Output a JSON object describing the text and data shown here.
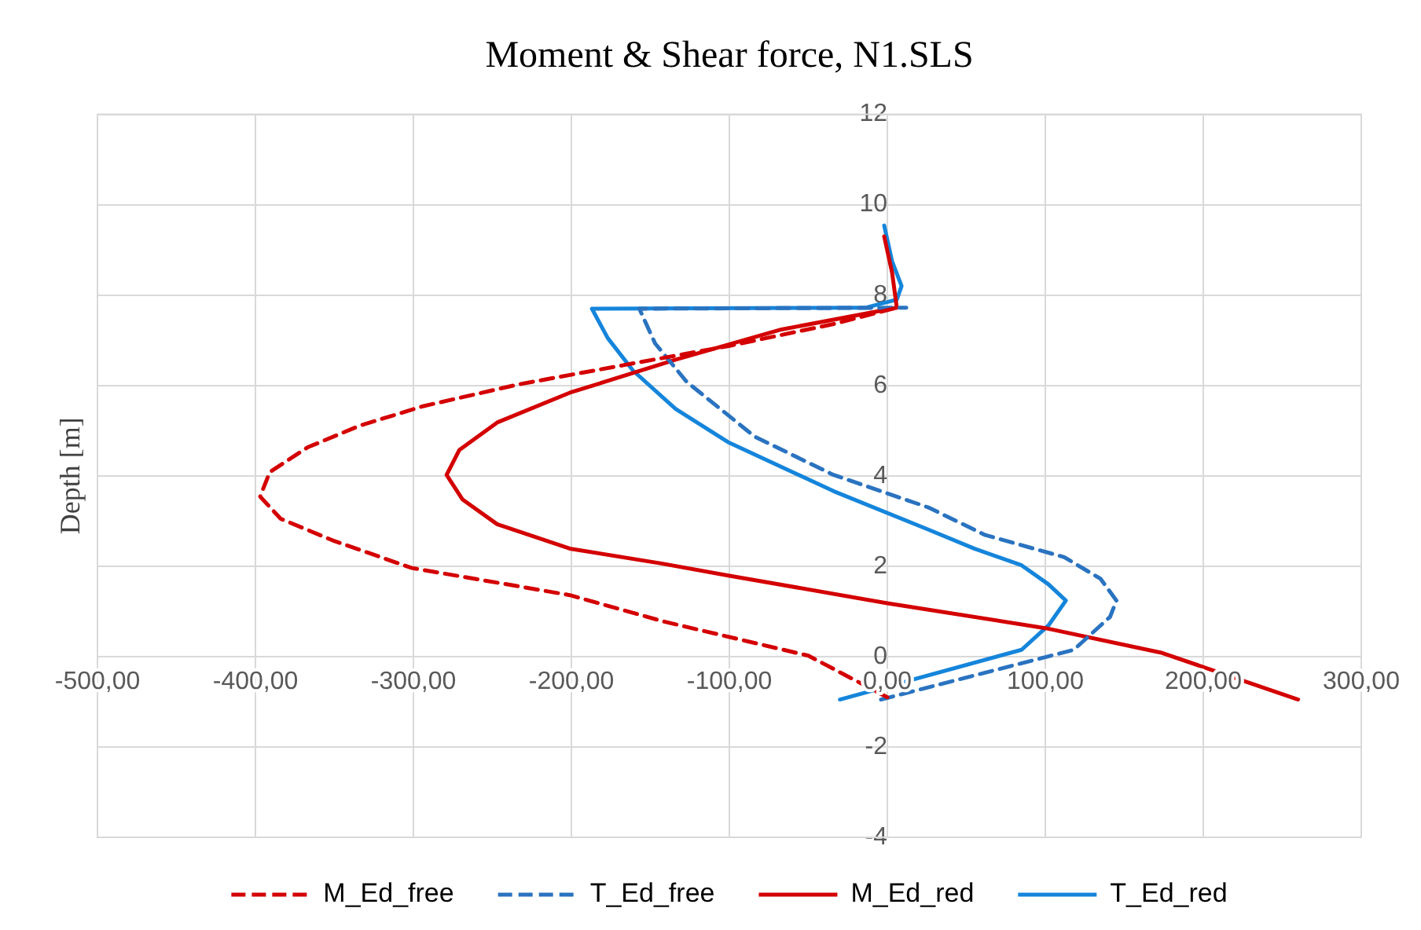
{
  "chart_data": {
    "type": "line",
    "title": "Moment & Shear force, N1.SLS",
    "ylabel": "Depth [m]",
    "xlim": [
      -500,
      300
    ],
    "xticks": [
      {
        "value": -500,
        "label": "-500,00"
      },
      {
        "value": -400,
        "label": "-400,00"
      },
      {
        "value": -300,
        "label": "-300,00"
      },
      {
        "value": -200,
        "label": "-200,00"
      },
      {
        "value": -100,
        "label": "-100,00"
      },
      {
        "value": 0,
        "label": "0,00"
      },
      {
        "value": 100,
        "label": "100,00"
      },
      {
        "value": 200,
        "label": "200,00"
      },
      {
        "value": 300,
        "label": "300,00"
      }
    ],
    "ylim": [
      -4,
      12
    ],
    "yticks": [
      -4,
      -2,
      0,
      2,
      4,
      6,
      8,
      10,
      12
    ],
    "grid": true,
    "legend": "bottom",
    "marker": "none",
    "series": [
      {
        "name": "M_Ed_free",
        "color": "#d40000",
        "line_style": "dashed",
        "x": [
          0,
          -50,
          -142,
          -201,
          -301,
          -351,
          -384,
          -397,
          -391,
          -367,
          -334,
          -294,
          -234,
          -167,
          -101,
          -34,
          6
        ],
        "values": [
          -0.9,
          0.02,
          0.78,
          1.36,
          1.96,
          2.57,
          3.05,
          3.54,
          4.08,
          4.63,
          5.11,
          5.54,
          6.02,
          6.45,
          6.87,
          7.36,
          7.72
        ]
      },
      {
        "name": "T_Ed_free",
        "color": "#2a73c0",
        "line_style": "dashed",
        "x": [
          -4,
          118,
          141,
          145,
          135,
          112,
          62,
          26,
          -34,
          -84,
          -127,
          -147,
          -157,
          12
        ],
        "values": [
          -0.95,
          0.15,
          0.88,
          1.24,
          1.72,
          2.2,
          2.69,
          3.3,
          4.02,
          4.87,
          6.08,
          6.93,
          7.7,
          7.72
        ]
      },
      {
        "name": "M_Ed_red",
        "color": "#d40000",
        "line_style": "solid",
        "x": [
          260,
          174,
          100,
          0,
          -100,
          -143,
          -201,
          -247,
          -269,
          -279,
          -271,
          -247,
          -201,
          -134,
          -67,
          6,
          3,
          -2
        ],
        "values": [
          -0.95,
          0.08,
          0.63,
          1.18,
          1.79,
          2.06,
          2.39,
          2.93,
          3.48,
          4.02,
          4.57,
          5.18,
          5.84,
          6.57,
          7.24,
          7.72,
          8.5,
          9.3
        ]
      },
      {
        "name": "T_Ed_red",
        "color": "#1585db",
        "line_style": "solid",
        "x": [
          -30,
          85,
          102,
          113,
          102,
          85,
          55,
          26,
          -34,
          -101,
          -134,
          -161,
          -177,
          -187,
          -14,
          6,
          9,
          3,
          -2
        ],
        "values": [
          -0.95,
          0.15,
          0.69,
          1.24,
          1.6,
          2.02,
          2.39,
          2.81,
          3.66,
          4.75,
          5.48,
          6.33,
          7.05,
          7.7,
          7.72,
          7.9,
          8.2,
          8.75,
          9.54
        ]
      }
    ]
  }
}
